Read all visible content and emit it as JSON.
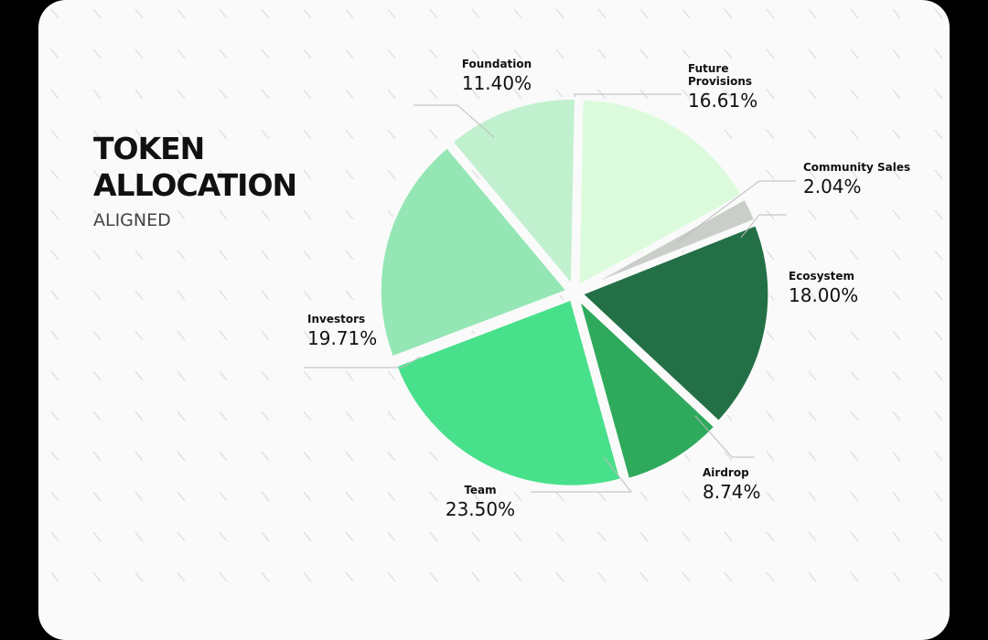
{
  "chart_data": {
    "type": "pie",
    "title": "TOKEN ALLOCATION",
    "subtitle": "ALIGNED",
    "categories": [
      "Future Provisions",
      "Community Sales",
      "Ecosystem",
      "Airdrop",
      "Team",
      "Investors",
      "Foundation"
    ],
    "values": [
      16.61,
      2.04,
      18.0,
      8.74,
      23.5,
      19.71,
      11.4
    ],
    "value_labels": [
      "16.61%",
      "2.04%",
      "18.00%",
      "8.74%",
      "23.50%",
      "19.71%",
      "11.40%"
    ],
    "colors": [
      "#dcfbdc",
      "#c9cec9",
      "#237046",
      "#2faa5c",
      "#48e08a",
      "#94e6b4",
      "#c1f0cf"
    ]
  }
}
